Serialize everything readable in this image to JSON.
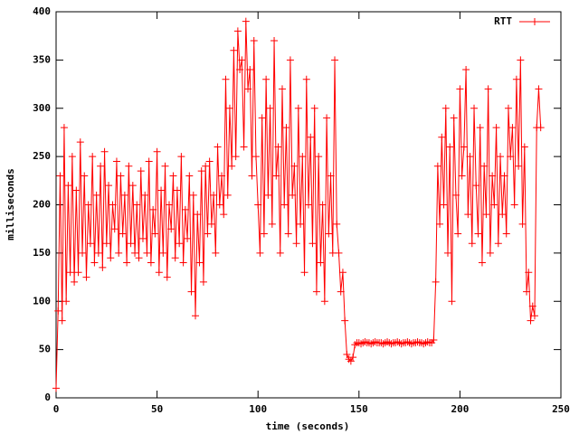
{
  "chart_data": {
    "type": "line",
    "xlabel": "time (seconds)",
    "ylabel": "milliseconds",
    "xlim": [
      0,
      250
    ],
    "ylim": [
      0,
      400
    ],
    "xticks": [
      0,
      50,
      100,
      150,
      200,
      250
    ],
    "yticks": [
      0,
      50,
      100,
      150,
      200,
      250,
      300,
      350,
      400
    ],
    "legend": "top-right",
    "x": [
      0,
      1,
      2,
      3,
      4,
      5,
      6,
      7,
      8,
      9,
      10,
      11,
      12,
      13,
      14,
      15,
      16,
      17,
      18,
      19,
      20,
      21,
      22,
      23,
      24,
      25,
      26,
      27,
      28,
      29,
      30,
      31,
      32,
      33,
      34,
      35,
      36,
      37,
      38,
      39,
      40,
      41,
      42,
      43,
      44,
      45,
      46,
      47,
      48,
      49,
      50,
      51,
      52,
      53,
      54,
      55,
      56,
      57,
      58,
      59,
      60,
      61,
      62,
      63,
      64,
      65,
      66,
      67,
      68,
      69,
      70,
      71,
      72,
      73,
      74,
      75,
      76,
      77,
      78,
      79,
      80,
      81,
      82,
      83,
      84,
      85,
      86,
      87,
      88,
      89,
      90,
      91,
      92,
      93,
      94,
      95,
      96,
      97,
      98,
      99,
      100,
      101,
      102,
      103,
      104,
      105,
      106,
      107,
      108,
      109,
      110,
      111,
      112,
      113,
      114,
      115,
      116,
      117,
      118,
      119,
      120,
      121,
      122,
      123,
      124,
      125,
      126,
      127,
      128,
      129,
      130,
      131,
      132,
      133,
      134,
      135,
      136,
      137,
      138,
      139,
      140,
      141,
      142,
      143,
      144,
      145,
      146,
      147,
      148,
      149,
      150,
      151,
      152,
      153,
      154,
      155,
      156,
      157,
      158,
      159,
      160,
      161,
      162,
      163,
      164,
      165,
      166,
      167,
      168,
      169,
      170,
      171,
      172,
      173,
      174,
      175,
      176,
      177,
      178,
      179,
      180,
      181,
      182,
      183,
      184,
      185,
      186,
      187,
      188,
      189,
      190,
      191,
      192,
      193,
      194,
      195,
      196,
      197,
      198,
      199,
      200,
      201,
      202,
      203,
      204,
      205,
      206,
      207,
      208,
      209,
      210,
      211,
      212,
      213,
      214,
      215,
      216,
      217,
      218,
      219,
      220,
      221,
      222,
      223,
      224,
      225,
      226,
      227,
      228,
      229,
      230,
      231,
      232,
      233,
      234,
      235,
      236,
      237,
      238,
      239,
      240
    ],
    "series": [
      {
        "name": "RTT",
        "color": "#ff0000",
        "values": [
          10,
          90,
          230,
          80,
          280,
          100,
          220,
          130,
          250,
          120,
          215,
          130,
          265,
          150,
          230,
          125,
          200,
          160,
          250,
          140,
          210,
          150,
          240,
          135,
          255,
          160,
          220,
          145,
          200,
          175,
          245,
          150,
          230,
          170,
          210,
          140,
          240,
          160,
          220,
          150,
          200,
          145,
          235,
          165,
          210,
          150,
          245,
          140,
          195,
          170,
          255,
          130,
          215,
          150,
          240,
          125,
          200,
          175,
          230,
          145,
          215,
          160,
          250,
          140,
          195,
          165,
          230,
          110,
          210,
          85,
          190,
          140,
          235,
          120,
          240,
          170,
          245,
          180,
          210,
          150,
          260,
          200,
          230,
          190,
          330,
          210,
          300,
          240,
          360,
          250,
          380,
          340,
          350,
          260,
          390,
          320,
          340,
          230,
          370,
          250,
          200,
          150,
          290,
          170,
          330,
          210,
          300,
          180,
          370,
          230,
          260,
          150,
          320,
          200,
          280,
          170,
          350,
          210,
          240,
          160,
          300,
          180,
          250,
          130,
          330,
          200,
          270,
          160,
          300,
          110,
          250,
          140,
          200,
          100,
          290,
          170,
          230,
          150,
          350,
          180,
          150,
          110,
          130,
          80,
          45,
          40,
          38,
          42,
          55,
          57,
          57,
          56,
          57,
          58,
          57,
          57,
          56,
          57,
          58,
          57,
          57,
          57,
          56,
          57,
          58,
          57,
          56,
          57,
          57,
          58,
          57,
          56,
          57,
          57,
          58,
          57,
          56,
          57,
          57,
          58,
          57,
          57,
          56,
          57,
          58,
          57,
          57,
          60,
          120,
          240,
          180,
          270,
          200,
          300,
          150,
          260,
          100,
          290,
          210,
          170,
          320,
          230,
          260,
          340,
          190,
          250,
          160,
          300,
          220,
          170,
          280,
          140,
          240,
          190,
          320,
          150,
          230,
          200,
          280,
          160,
          250,
          190,
          230,
          170,
          300,
          250,
          280,
          200,
          330,
          240,
          350,
          180,
          260,
          110,
          130,
          80,
          95,
          85,
          280,
          320,
          280
        ]
      }
    ]
  }
}
